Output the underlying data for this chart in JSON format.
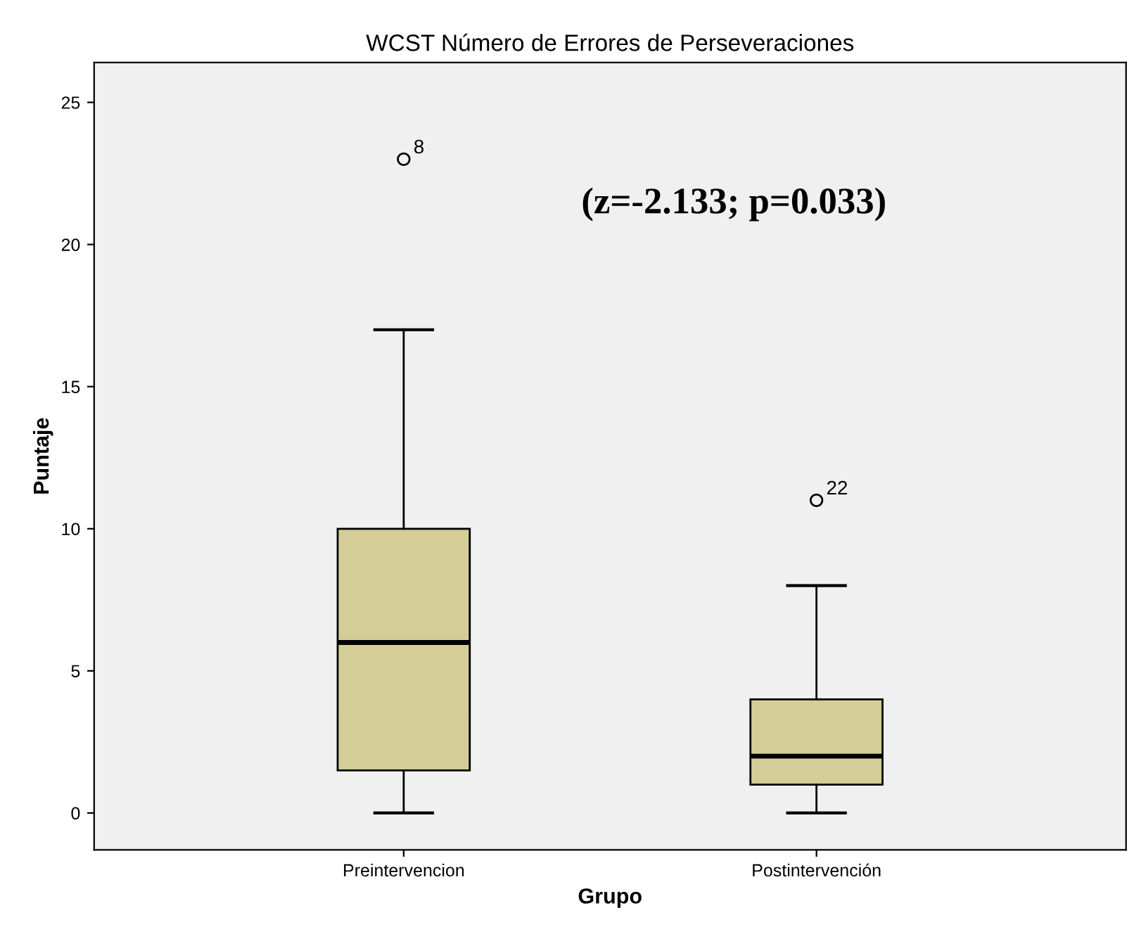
{
  "chart_data": {
    "type": "box",
    "title": "WCST Número de Errores de Perseveraciones",
    "xlabel": "Grupo",
    "ylabel": "Puntaje",
    "categories": [
      "Preintervencion",
      "Postintervención"
    ],
    "series": [
      {
        "color": "#d4cd98",
        "boxes": [
          {
            "low": 0,
            "q1": 1.5,
            "median": 6,
            "q3": 10,
            "high": 17,
            "outliers": [
              23
            ]
          },
          {
            "low": 0,
            "q1": 1,
            "median": 2,
            "q3": 4,
            "high": 8,
            "outliers": [
              11
            ]
          }
        ]
      }
    ],
    "ylim": [
      -1.3,
      26.4
    ],
    "yticks": [
      0,
      5,
      10,
      15,
      20,
      25
    ],
    "grid": false,
    "annotations": [
      "8",
      "22",
      "(z=-2.133; p=0.033)"
    ]
  }
}
